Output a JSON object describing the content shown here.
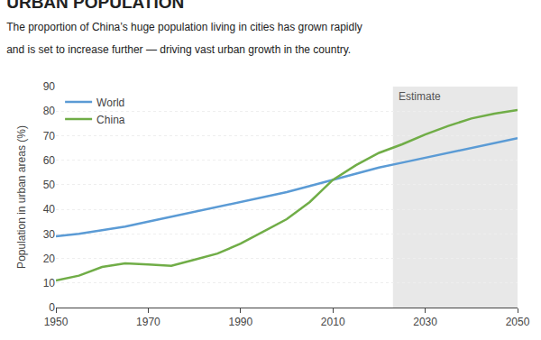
{
  "chart_data": {
    "type": "line",
    "title": "URBAN POPULATION",
    "subtitle": "The proportion of China’s huge population living in cities has grown rapidly\nand is set to increase further — driving vast urban growth in the country.",
    "y_label": "Population in urban areas (%)",
    "x": [
      1950,
      1955,
      1960,
      1965,
      1970,
      1975,
      1980,
      1985,
      1990,
      1995,
      2000,
      2005,
      2010,
      2015,
      2020,
      2025,
      2030,
      2035,
      2040,
      2045,
      2050
    ],
    "series": [
      {
        "name": "World",
        "color": "#5B9BD5",
        "values": [
          29.0,
          30.0,
          31.5,
          33.0,
          35.0,
          37.0,
          39.0,
          41.0,
          43.0,
          45.0,
          47.0,
          49.5,
          52.0,
          54.5,
          57.0,
          59.0,
          61.0,
          63.0,
          65.0,
          67.0,
          69.0
        ]
      },
      {
        "name": "China",
        "color": "#70AD47",
        "values": [
          11.0,
          13.0,
          16.5,
          18.0,
          17.5,
          17.0,
          19.5,
          22.0,
          26.0,
          31.0,
          36.0,
          43.0,
          52.0,
          58.0,
          63.0,
          66.5,
          70.5,
          74.0,
          77.0,
          79.0,
          80.5
        ]
      }
    ],
    "xlim": [
      1950,
      2050
    ],
    "xticks": [
      1950,
      1970,
      1990,
      2010,
      2030,
      2050
    ],
    "ylim": [
      0,
      90
    ],
    "yticks": [
      0,
      10,
      20,
      30,
      40,
      50,
      60,
      70,
      80,
      90
    ],
    "grid": true,
    "legend": "upper left",
    "estimate": {
      "start": 2023,
      "label": "Estimate",
      "color": "#E8E8E8"
    }
  }
}
